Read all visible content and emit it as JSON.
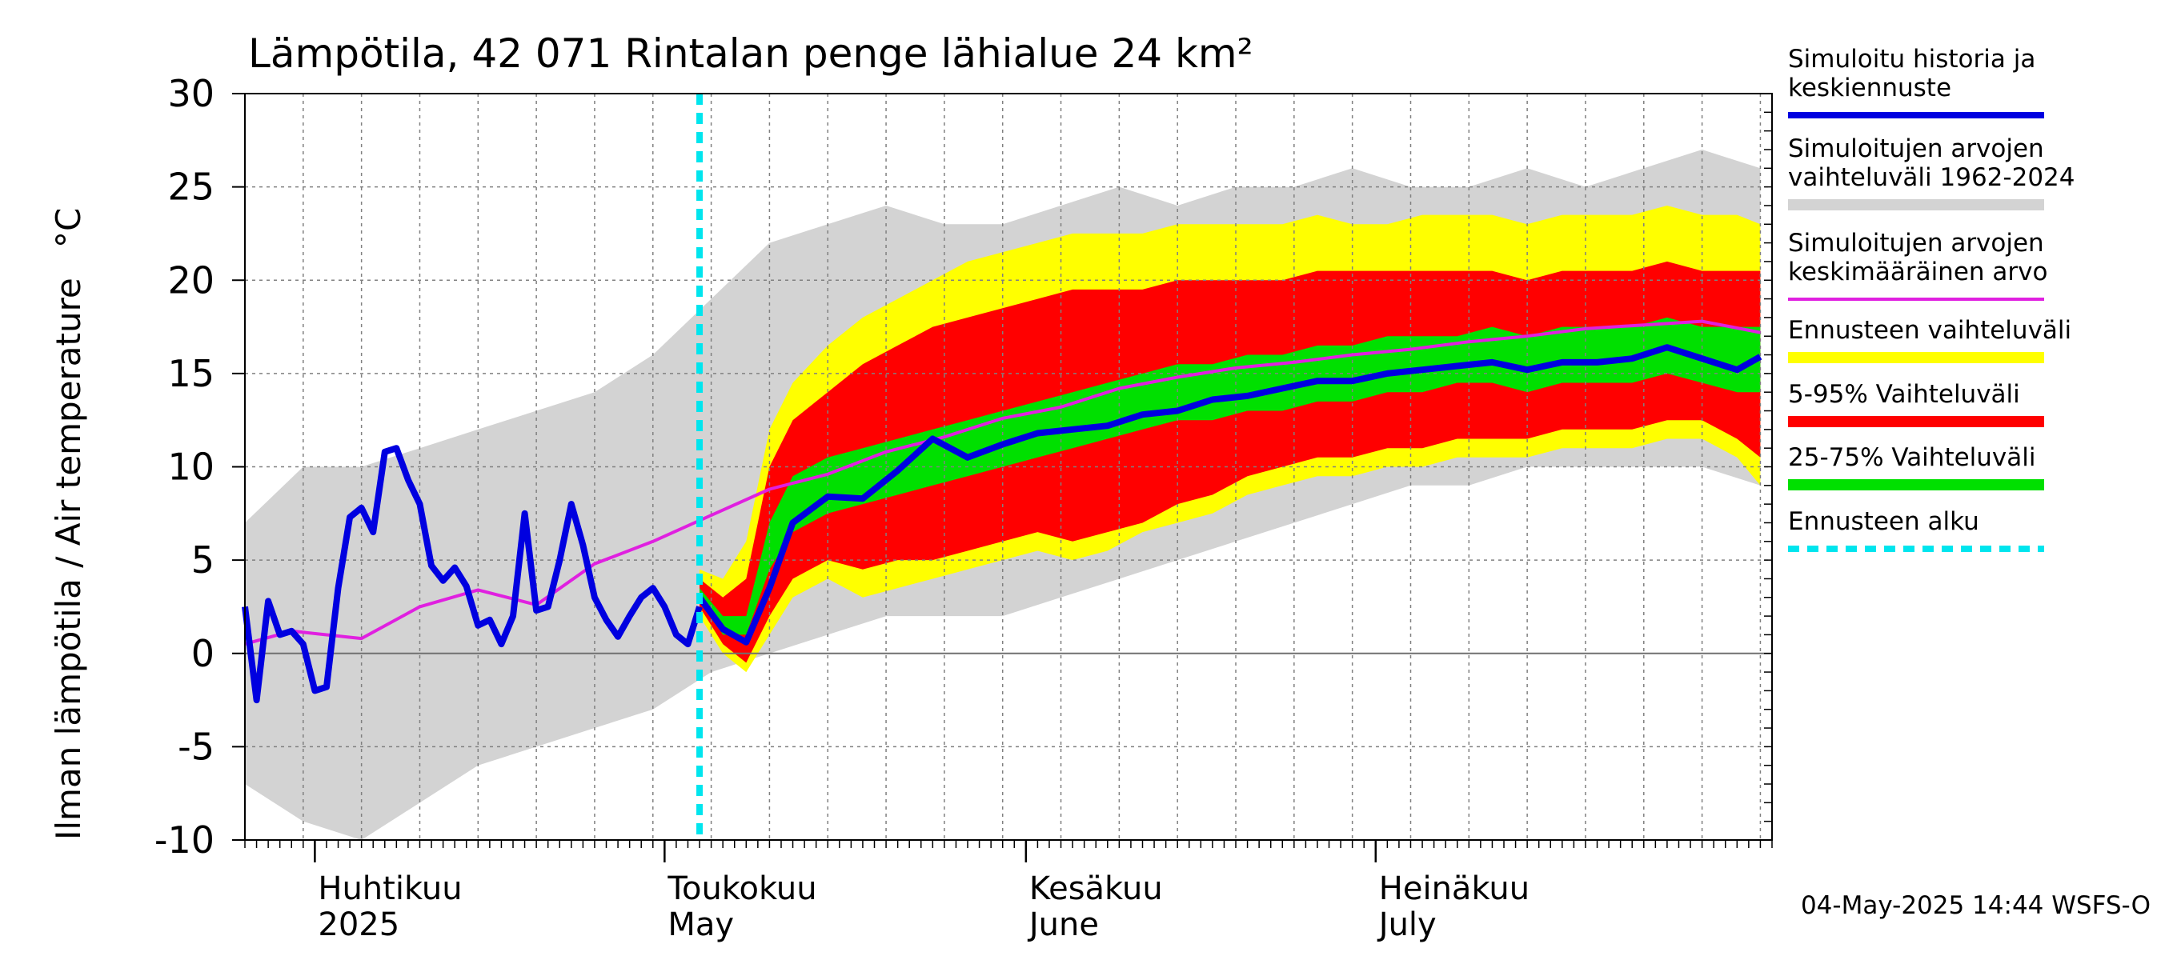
{
  "chart_data": {
    "type": "area",
    "title": "Lämpötila, 42 071 Rintalan penge lähialue 24 km²",
    "ylabel": "Ilman lämpötila / Air temperature",
    "yunit": "°C",
    "ylim": [
      -10,
      30
    ],
    "yticks": [
      -10,
      -5,
      0,
      5,
      10,
      15,
      20,
      25,
      30
    ],
    "xlim": [
      "2025-03-26",
      "2025-08-04"
    ],
    "forecast_start": "2025-05-04",
    "grid": true,
    "legend_position": "right",
    "month_labels": [
      {
        "date": "2025-04-01",
        "fi": "Huhtikuu",
        "en": "2025"
      },
      {
        "date": "2025-05-01",
        "fi": "Toukokuu",
        "en": "May"
      },
      {
        "date": "2025-06-01",
        "fi": "Kesäkuu",
        "en": "June"
      },
      {
        "date": "2025-07-01",
        "fi": "Heinäkuu",
        "en": "July"
      }
    ],
    "legend": [
      {
        "id": "sim",
        "label": "Simuloitu historia ja keskiennuste",
        "color": "#0000e0",
        "style": "line"
      },
      {
        "id": "range",
        "label": "Simuloitujen arvojen vaihteluväli 1962-2024",
        "color": "#d3d3d3",
        "style": "band"
      },
      {
        "id": "mean",
        "label": "Simuloitujen arvojen keskimääräinen arvo",
        "color": "#e020e0",
        "style": "line"
      },
      {
        "id": "fc",
        "label": "Ennusteen vaihteluväli",
        "color": "#ffff00",
        "style": "band"
      },
      {
        "id": "p595",
        "label": "5-95% Vaihteluväli",
        "color": "#ff0000",
        "style": "band"
      },
      {
        "id": "p2575",
        "label": "25-75% Vaihteluväli",
        "color": "#00e000",
        "style": "band"
      },
      {
        "id": "start",
        "label": "Ennusteen alku",
        "color": "#00e5ee",
        "style": "dashed"
      }
    ],
    "series": {
      "historical_range": {
        "dates": [
          "2025-03-26",
          "2025-03-31",
          "2025-04-05",
          "2025-04-10",
          "2025-04-15",
          "2025-04-20",
          "2025-04-25",
          "2025-04-30",
          "2025-05-05",
          "2025-05-10",
          "2025-05-15",
          "2025-05-20",
          "2025-05-25",
          "2025-05-30",
          "2025-06-04",
          "2025-06-09",
          "2025-06-14",
          "2025-06-19",
          "2025-06-24",
          "2025-06-29",
          "2025-07-04",
          "2025-07-09",
          "2025-07-14",
          "2025-07-19",
          "2025-07-24",
          "2025-07-29",
          "2025-08-03"
        ],
        "low": [
          -7,
          -9,
          -10,
          -8,
          -6,
          -5,
          -4,
          -3,
          -1,
          0,
          1,
          2,
          2,
          2,
          3,
          4,
          5,
          6,
          7,
          8,
          9,
          9,
          10,
          10,
          10,
          10,
          9
        ],
        "high": [
          7,
          10,
          10,
          11,
          12,
          13,
          14,
          16,
          19,
          22,
          23,
          24,
          23,
          23,
          24,
          25,
          24,
          25,
          25,
          26,
          25,
          25,
          26,
          25,
          26,
          27,
          26
        ]
      },
      "simulated_history": {
        "dates": [
          "2025-03-26",
          "2025-03-27",
          "2025-03-28",
          "2025-03-29",
          "2025-03-30",
          "2025-03-31",
          "2025-04-01",
          "2025-04-02",
          "2025-04-03",
          "2025-04-04",
          "2025-04-05",
          "2025-04-06",
          "2025-04-07",
          "2025-04-08",
          "2025-04-09",
          "2025-04-10",
          "2025-04-11",
          "2025-04-12",
          "2025-04-13",
          "2025-04-14",
          "2025-04-15",
          "2025-04-16",
          "2025-04-17",
          "2025-04-18",
          "2025-04-19",
          "2025-04-20",
          "2025-04-21",
          "2025-04-22",
          "2025-04-23",
          "2025-04-24",
          "2025-04-25",
          "2025-04-26",
          "2025-04-27",
          "2025-04-28",
          "2025-04-29",
          "2025-04-30",
          "2025-05-01",
          "2025-05-02",
          "2025-05-03",
          "2025-05-04"
        ],
        "values": [
          2.5,
          -2.5,
          2.8,
          1.0,
          1.2,
          0.5,
          -2.0,
          -1.8,
          3.5,
          7.3,
          7.8,
          6.5,
          10.8,
          11.0,
          9.3,
          8.0,
          4.7,
          3.9,
          4.6,
          3.6,
          1.5,
          1.8,
          0.5,
          2.0,
          7.5,
          2.3,
          2.5,
          5.0,
          8.0,
          5.8,
          3.0,
          1.8,
          0.9,
          2.0,
          3.0,
          3.5,
          2.5,
          1.0,
          0.5,
          2.5
        ]
      },
      "historical_mean": {
        "dates": [
          "2025-03-26",
          "2025-03-30",
          "2025-04-05",
          "2025-04-10",
          "2025-04-15",
          "2025-04-20",
          "2025-04-25",
          "2025-04-30",
          "2025-05-05",
          "2025-05-10",
          "2025-05-15",
          "2025-05-20",
          "2025-05-25",
          "2025-05-30",
          "2025-06-04",
          "2025-06-09",
          "2025-06-14",
          "2025-06-19",
          "2025-06-24",
          "2025-06-29",
          "2025-07-04",
          "2025-07-09",
          "2025-07-14",
          "2025-07-19",
          "2025-07-24",
          "2025-07-29",
          "2025-08-03"
        ],
        "values": [
          0.5,
          1.2,
          0.8,
          2.5,
          3.4,
          2.6,
          4.8,
          6.0,
          7.4,
          8.8,
          9.6,
          10.8,
          11.6,
          12.6,
          13.2,
          14.2,
          14.8,
          15.3,
          15.6,
          16.0,
          16.3,
          16.7,
          17.0,
          17.4,
          17.6,
          17.8,
          17.2
        ]
      },
      "forecast": {
        "dates": [
          "2025-05-04",
          "2025-05-06",
          "2025-05-08",
          "2025-05-10",
          "2025-05-12",
          "2025-05-15",
          "2025-05-18",
          "2025-05-21",
          "2025-05-24",
          "2025-05-27",
          "2025-05-30",
          "2025-06-02",
          "2025-06-05",
          "2025-06-08",
          "2025-06-11",
          "2025-06-14",
          "2025-06-17",
          "2025-06-20",
          "2025-06-23",
          "2025-06-26",
          "2025-06-29",
          "2025-07-02",
          "2025-07-05",
          "2025-07-08",
          "2025-07-11",
          "2025-07-14",
          "2025-07-17",
          "2025-07-20",
          "2025-07-23",
          "2025-07-26",
          "2025-07-29",
          "2025-08-01",
          "2025-08-03"
        ],
        "min": [
          2.0,
          0.0,
          -1.0,
          1.0,
          3.0,
          4.0,
          3.0,
          3.5,
          4.0,
          4.5,
          5.0,
          5.5,
          5.0,
          5.5,
          6.5,
          7.0,
          7.5,
          8.5,
          9.0,
          9.5,
          9.5,
          10.0,
          10.0,
          10.5,
          10.5,
          10.5,
          11.0,
          11.0,
          11.0,
          11.5,
          11.5,
          10.5,
          9.0
        ],
        "p5": [
          2.5,
          0.5,
          -0.5,
          2.0,
          4.0,
          5.0,
          4.5,
          5.0,
          5.0,
          5.5,
          6.0,
          6.5,
          6.0,
          6.5,
          7.0,
          8.0,
          8.5,
          9.5,
          10.0,
          10.5,
          10.5,
          11.0,
          11.0,
          11.5,
          11.5,
          11.5,
          12.0,
          12.0,
          12.0,
          12.5,
          12.5,
          11.5,
          10.5
        ],
        "p25": [
          3.0,
          1.0,
          1.0,
          4.5,
          6.5,
          7.5,
          8.0,
          8.5,
          9.0,
          9.5,
          10.0,
          10.5,
          11.0,
          11.5,
          12.0,
          12.5,
          12.5,
          13.0,
          13.0,
          13.5,
          13.5,
          14.0,
          14.0,
          14.5,
          14.5,
          14.0,
          14.5,
          14.5,
          14.5,
          15.0,
          14.5,
          14.0,
          14.0
        ],
        "median": [
          3.0,
          1.3,
          0.6,
          3.5,
          7.0,
          8.4,
          8.3,
          9.8,
          11.5,
          10.5,
          11.2,
          11.8,
          12.0,
          12.2,
          12.8,
          13.0,
          13.6,
          13.8,
          14.2,
          14.6,
          14.6,
          15.0,
          15.2,
          15.4,
          15.6,
          15.2,
          15.6,
          15.6,
          15.8,
          16.4,
          15.8,
          15.2,
          15.9
        ],
        "p75": [
          3.5,
          2.0,
          2.0,
          7.0,
          9.5,
          10.5,
          11.0,
          11.5,
          12.0,
          12.5,
          13.0,
          13.5,
          14.0,
          14.5,
          15.0,
          15.5,
          15.5,
          16.0,
          16.0,
          16.5,
          16.5,
          17.0,
          17.0,
          17.0,
          17.5,
          17.0,
          17.5,
          17.5,
          17.5,
          18.0,
          17.5,
          17.5,
          17.5
        ],
        "p95": [
          4.0,
          3.0,
          4.0,
          10.0,
          12.5,
          14.0,
          15.5,
          16.5,
          17.5,
          18.0,
          18.5,
          19.0,
          19.5,
          19.5,
          19.5,
          20.0,
          20.0,
          20.0,
          20.0,
          20.5,
          20.5,
          20.5,
          20.5,
          20.5,
          20.5,
          20.0,
          20.5,
          20.5,
          20.5,
          21.0,
          20.5,
          20.5,
          20.5
        ],
        "max": [
          4.5,
          4.0,
          6.0,
          12.0,
          14.5,
          16.5,
          18.0,
          19.0,
          20.0,
          21.0,
          21.5,
          22.0,
          22.5,
          22.5,
          22.5,
          23.0,
          23.0,
          23.0,
          23.0,
          23.5,
          23.0,
          23.0,
          23.5,
          23.5,
          23.5,
          23.0,
          23.5,
          23.5,
          23.5,
          24.0,
          23.5,
          23.5,
          23.0
        ]
      }
    },
    "footer": "04-May-2025 14:44 WSFS-O"
  }
}
